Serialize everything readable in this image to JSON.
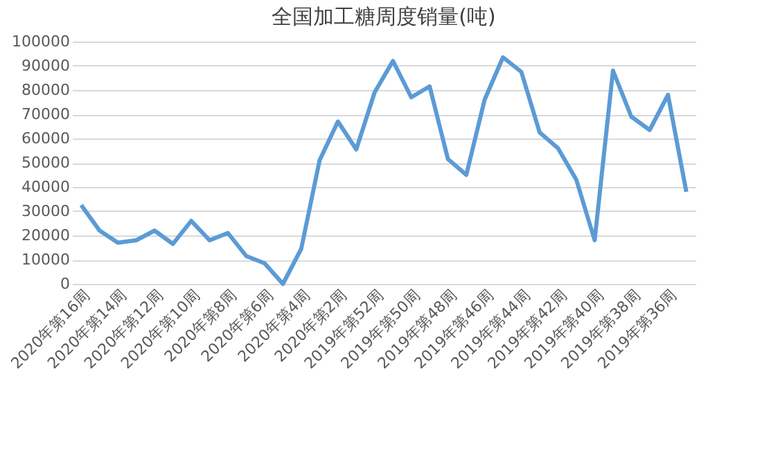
{
  "chart_data": {
    "type": "line",
    "title": "全国加工糖周度销量(吨)",
    "categories": [
      "2020年第16周",
      null,
      "2020年第14周",
      null,
      "2020年第12周",
      null,
      "2020年第10周",
      null,
      "2020年第8周",
      null,
      "2020年第6周",
      null,
      "2020年第4周",
      null,
      "2020年第2周",
      null,
      "2019年第52周",
      null,
      "2019年第50周",
      null,
      "2019年第48周",
      null,
      "2019年第46周",
      null,
      "2019年第44周",
      null,
      "2019年第42周",
      null,
      "2019年第40周",
      null,
      "2019年第38周",
      null,
      "2019年第36周",
      null
    ],
    "series": [
      {
        "color": "#5b9bd5",
        "values": [
          32500,
          22000,
          17000,
          18000,
          22000,
          16500,
          26000,
          18000,
          21000,
          11500,
          8500,
          0,
          14500,
          51000,
          67000,
          55500,
          79000,
          92000,
          77000,
          81500,
          51500,
          45000,
          76000,
          93500,
          87500,
          62500,
          56000,
          43000,
          18000,
          88000,
          69000,
          63500,
          78000,
          38000
        ]
      }
    ],
    "ylim": [
      0,
      100000
    ],
    "yticks": [
      0,
      10000,
      20000,
      30000,
      40000,
      50000,
      60000,
      70000,
      80000,
      90000,
      100000
    ],
    "grid": "y",
    "marker": "none",
    "line_style": "solid"
  }
}
